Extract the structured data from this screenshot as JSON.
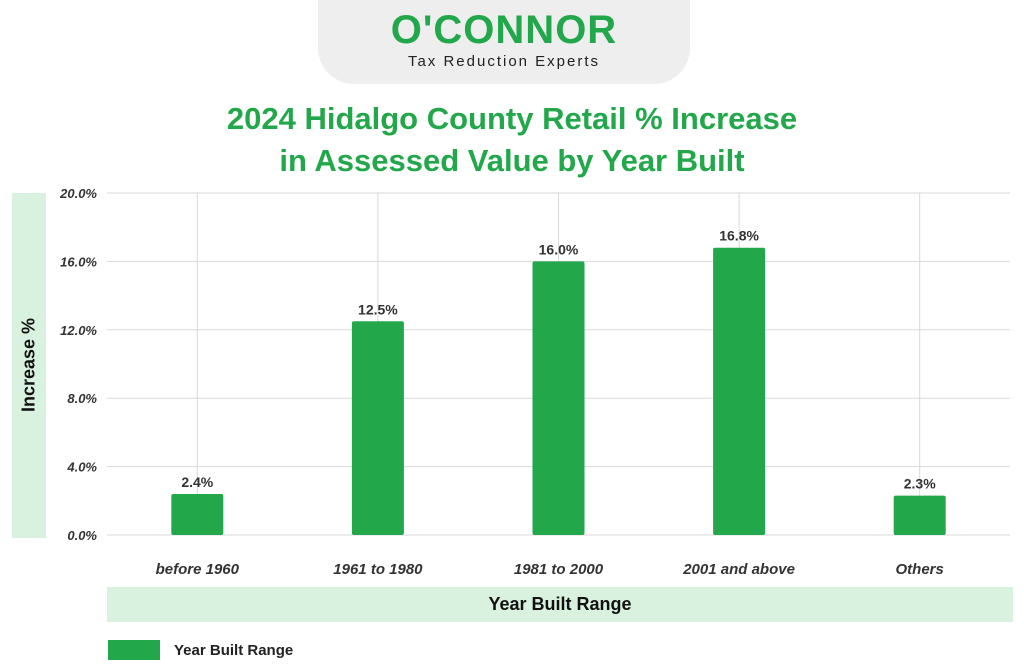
{
  "logo": {
    "name": "O'CONNOR",
    "tagline": "Tax Reduction Experts",
    "color": "#22a84a"
  },
  "chart_data": {
    "type": "bar",
    "title_line1": "2024 Hidalgo County Retail % Increase",
    "title_line2": "in Assessed Value by Year Built",
    "categories": [
      "before 1960",
      "1961 to 1980",
      "1981 to 2000",
      "2001 and above",
      "Others"
    ],
    "series": [
      {
        "name": "Year Built Range",
        "values": [
          2.4,
          12.5,
          16.0,
          16.8,
          2.3
        ]
      }
    ],
    "value_labels": [
      "2.4%",
      "12.5%",
      "16.0%",
      "16.8%",
      "2.3%"
    ],
    "ylabel": "Increase %",
    "xlabel": "Year Built Range",
    "ylim": [
      0,
      20
    ],
    "yticks": [
      "0.0%",
      "4.0%",
      "8.0%",
      "12.0%",
      "16.0%",
      "20.0%"
    ],
    "grid": true,
    "legend_position": "bottom-left",
    "bar_color": "#22a84a",
    "grid_color": "#d9d9d9"
  }
}
